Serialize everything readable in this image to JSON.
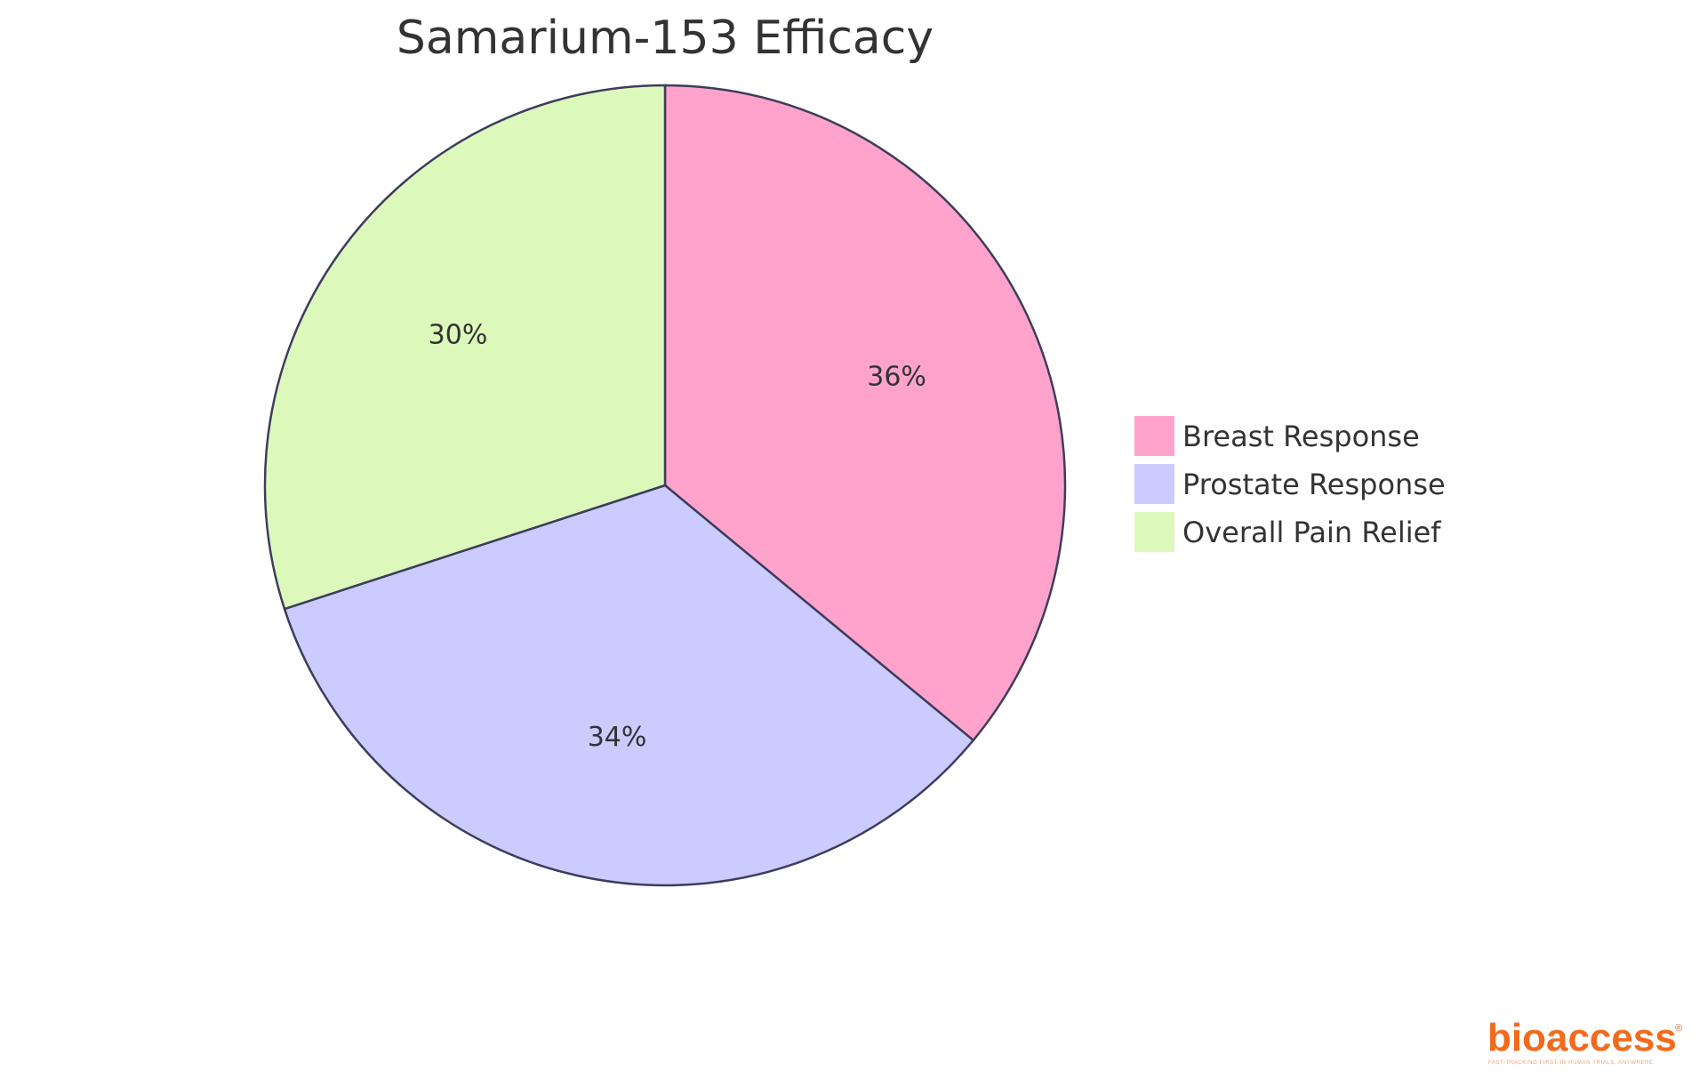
{
  "chart_data": {
    "type": "pie",
    "title": "Samarium-153 Efficacy",
    "series": [
      {
        "name": "Breast Response",
        "value": 36,
        "label": "36%",
        "color": "#ffa3cd"
      },
      {
        "name": "Prostate Response",
        "value": 34,
        "label": "34%",
        "color": "#cbcbff"
      },
      {
        "name": "Overall Pain Relief",
        "value": 30,
        "label": "30%",
        "color": "#dcf9bb"
      }
    ],
    "legend_placement": "right",
    "stroke_color": "#3d3d5c"
  },
  "branding": {
    "logo_text": "bioaccess",
    "logo_mark": "®",
    "tagline": "FAST-TRACKING FIRST-IN-HUMAN TRIALS, ANYWHERE",
    "color": "#f26a1b"
  }
}
